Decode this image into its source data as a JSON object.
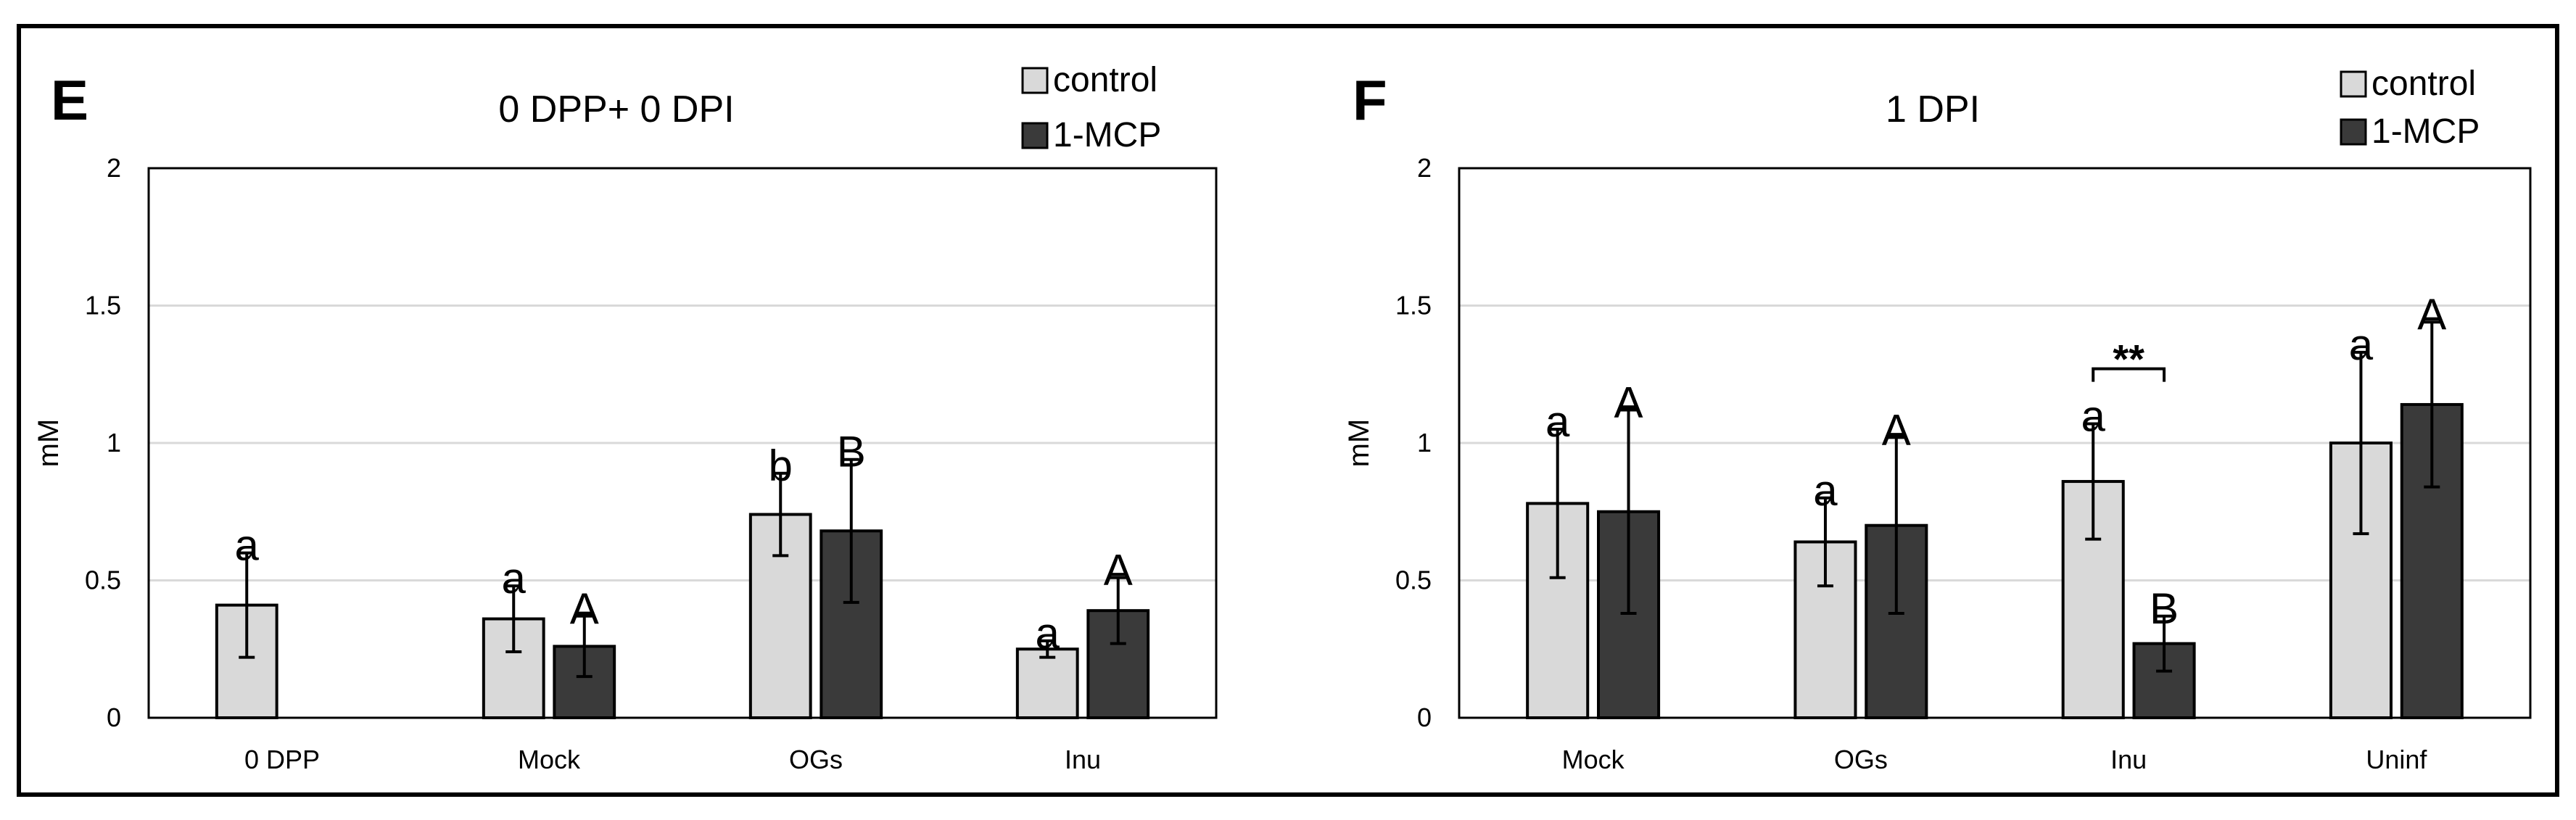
{
  "chart_data": [
    {
      "panel": "E",
      "type": "bar",
      "title": "0 DPP+ 0 DPI",
      "ylabel": "mM",
      "xlabel": "",
      "ylim": [
        0,
        2
      ],
      "yticks": [
        "0",
        "0.5",
        "1",
        "1.5",
        "2"
      ],
      "grid": true,
      "legend_position": "top-right",
      "categories": [
        "0 DPP",
        "Mock",
        "OGs",
        "Inu"
      ],
      "series": [
        {
          "name": "control",
          "color": "#d9d9d9",
          "values": [
            0.41,
            0.36,
            0.74,
            0.25
          ],
          "errors": [
            0.19,
            0.12,
            0.15,
            0.03
          ],
          "letters": [
            "a",
            "a",
            "b",
            "a"
          ]
        },
        {
          "name": "1-MCP",
          "color": "#3a3a3a",
          "values": [
            null,
            0.26,
            0.68,
            0.39
          ],
          "errors": [
            null,
            0.11,
            0.26,
            0.12
          ],
          "letters": [
            "",
            "A",
            "B",
            "A"
          ]
        }
      ],
      "annotations": []
    },
    {
      "panel": "F",
      "type": "bar",
      "title": "1 DPI",
      "ylabel": "mM",
      "xlabel": "",
      "ylim": [
        0,
        2
      ],
      "yticks": [
        "0",
        "0.5",
        "1",
        "1.5",
        "2"
      ],
      "grid": true,
      "legend_position": "top-right",
      "categories": [
        "Mock",
        "OGs",
        "Inu",
        "Uninf"
      ],
      "series": [
        {
          "name": "control",
          "color": "#d9d9d9",
          "values": [
            0.78,
            0.64,
            0.86,
            1.0
          ],
          "errors": [
            0.27,
            0.16,
            0.21,
            0.33
          ],
          "letters": [
            "a",
            "a",
            "a",
            "a"
          ]
        },
        {
          "name": "1-MCP",
          "color": "#3a3a3a",
          "values": [
            0.75,
            0.7,
            0.27,
            1.14
          ],
          "errors": [
            0.37,
            0.32,
            0.1,
            0.3
          ],
          "letters": [
            "A",
            "A",
            "B",
            "A"
          ]
        }
      ],
      "annotations": [
        {
          "text": "**",
          "category": "Inu",
          "type": "bracket"
        }
      ]
    }
  ]
}
